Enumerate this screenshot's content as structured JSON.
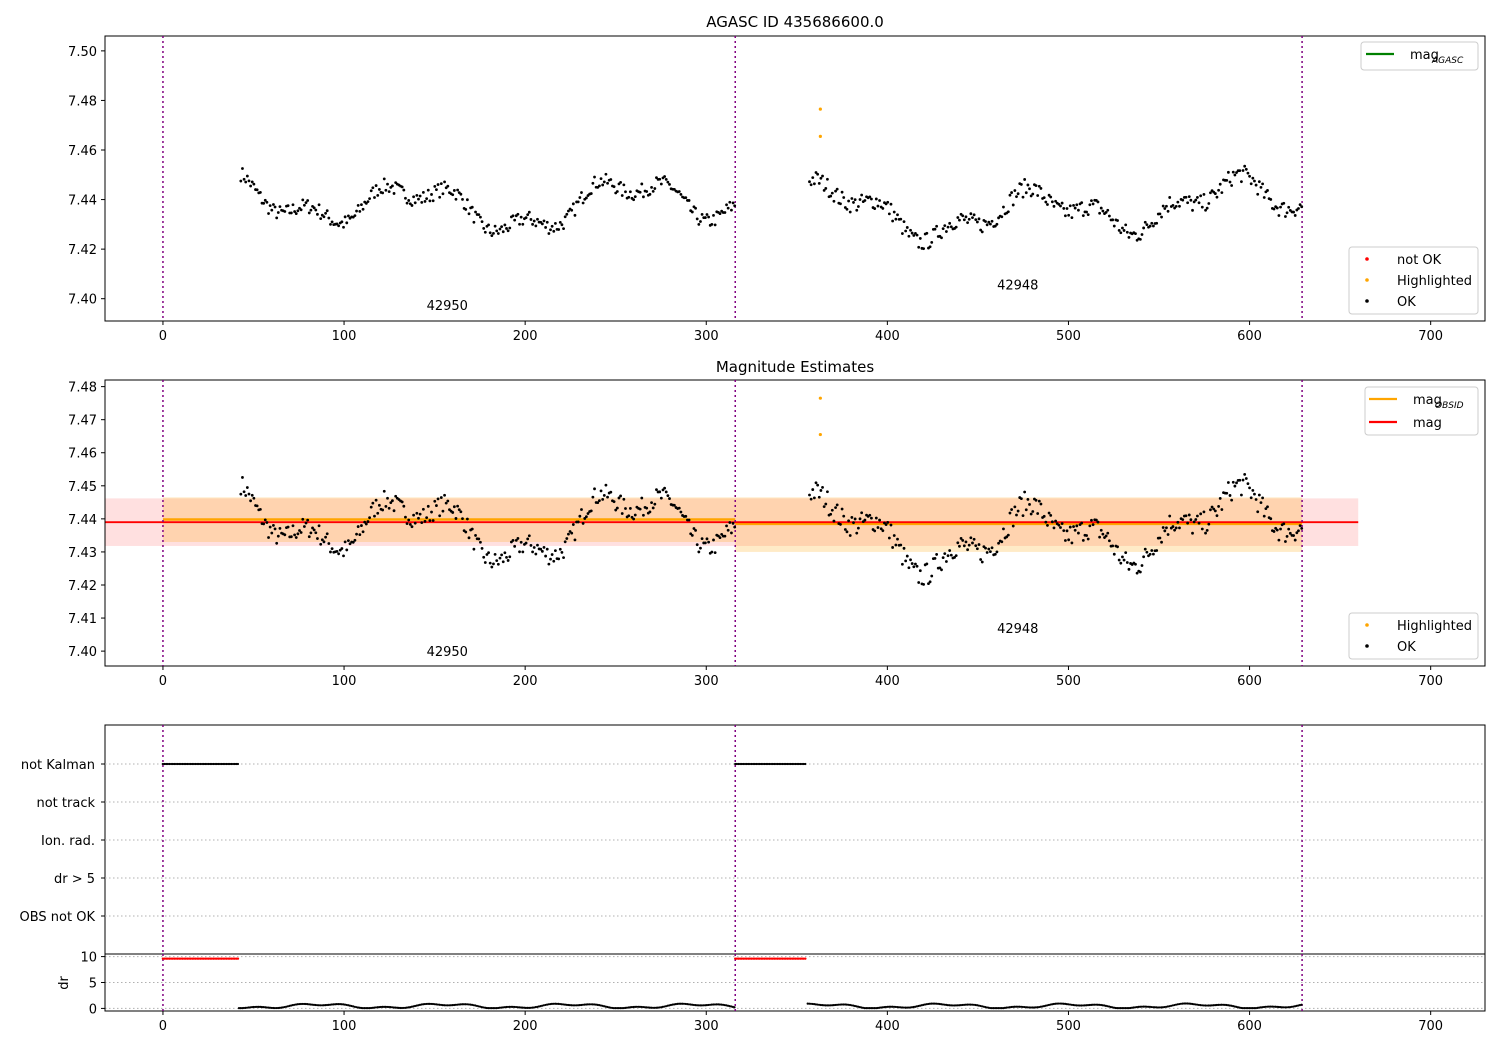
{
  "figure": {
    "title": "AGASC ID 435686600.0",
    "title2": "Magnitude Estimates"
  },
  "chart_data": [
    {
      "type": "scatter",
      "title": "AGASC ID 435686600.0",
      "xlim": [
        -32,
        730
      ],
      "ylim": [
        7.391,
        7.506
      ],
      "xticks": [
        0,
        100,
        200,
        300,
        400,
        500,
        600,
        700
      ],
      "yticks": [
        7.4,
        7.42,
        7.44,
        7.46,
        7.48,
        7.5
      ],
      "vlines": [
        0,
        316,
        629
      ],
      "obsid_labels": [
        {
          "text": "42950",
          "x": 157,
          "y": 7.3955
        },
        {
          "text": "42948",
          "x": 472,
          "y": 7.4038
        }
      ],
      "legend_upper": [
        {
          "label": "mag",
          "sub": "AGASC",
          "color": "#008000",
          "kind": "line"
        }
      ],
      "legend_lower": [
        {
          "label": "not OK",
          "color": "#ff0000",
          "kind": "dot"
        },
        {
          "label": "Highlighted",
          "color": "#ffa500",
          "kind": "dot"
        },
        {
          "label": "OK",
          "color": "#000000",
          "kind": "dot"
        }
      ],
      "highlighted": [
        {
          "x": 363,
          "y": 7.4765
        },
        {
          "x": 363,
          "y": 7.4655
        }
      ]
    },
    {
      "type": "scatter",
      "title": "Magnitude Estimates",
      "xlim": [
        -32,
        730
      ],
      "ylim": [
        7.3955,
        7.482
      ],
      "xticks": [
        0,
        100,
        200,
        300,
        400,
        500,
        600,
        700
      ],
      "yticks": [
        7.4,
        7.41,
        7.42,
        7.43,
        7.44,
        7.45,
        7.46,
        7.47,
        7.48
      ],
      "vlines": [
        0,
        316,
        629
      ],
      "obsid_labels": [
        {
          "text": "42950",
          "x": 157,
          "y": 7.3985
        },
        {
          "text": "42948",
          "x": 472,
          "y": 7.4055
        }
      ],
      "mag_line": {
        "y": 7.439,
        "x_range": [
          -32,
          660
        ],
        "band": [
          7.4318,
          7.4462
        ],
        "color": "#ff0000"
      },
      "obsid_mags": [
        {
          "x_range": [
            0,
            316
          ],
          "y": 7.4398,
          "band": [
            7.433,
            7.4465
          ]
        },
        {
          "x_range": [
            316,
            629
          ],
          "y": 7.4385,
          "band": [
            7.43,
            7.4465
          ]
        }
      ],
      "legend_upper": [
        {
          "label": "mag",
          "sub": "OBSID",
          "color": "#ffa500",
          "kind": "line"
        },
        {
          "label": "mag",
          "sub": "",
          "color": "#ff0000",
          "kind": "line"
        }
      ],
      "legend_lower": [
        {
          "label": "Highlighted",
          "color": "#ffa500",
          "kind": "dot"
        },
        {
          "label": "OK",
          "color": "#000000",
          "kind": "dot"
        }
      ],
      "highlighted": [
        {
          "x": 363,
          "y": 7.4765
        },
        {
          "x": 363,
          "y": 7.4655
        }
      ]
    },
    {
      "type": "scatter",
      "title": "",
      "xlim": [
        -32,
        730
      ],
      "categories": [
        "not Kalman",
        "not track",
        "Ion. rad.",
        "dr > 5",
        "OBS not OK"
      ],
      "flag_segments": [
        {
          "category": "not Kalman",
          "x_range": [
            0,
            42
          ]
        },
        {
          "category": "not Kalman",
          "x_range": [
            316,
            355
          ]
        }
      ]
    },
    {
      "type": "scatter",
      "title": "",
      "xlim": [
        -32,
        730
      ],
      "ylim": [
        -0.5,
        10.5
      ],
      "yticks": [
        0,
        5,
        10
      ],
      "ylabel": "dr",
      "xticks": [
        0,
        100,
        200,
        300,
        400,
        500,
        600,
        700
      ],
      "vlines": [
        0,
        316,
        629
      ],
      "red_segments": [
        {
          "x_range": [
            0,
            42
          ],
          "y": 9.6
        },
        {
          "x_range": [
            316,
            355
          ],
          "y": 9.6
        }
      ],
      "ok_segments": [
        {
          "x_range": [
            42,
            316
          ]
        },
        {
          "x_range": [
            356,
            629
          ]
        }
      ]
    }
  ]
}
